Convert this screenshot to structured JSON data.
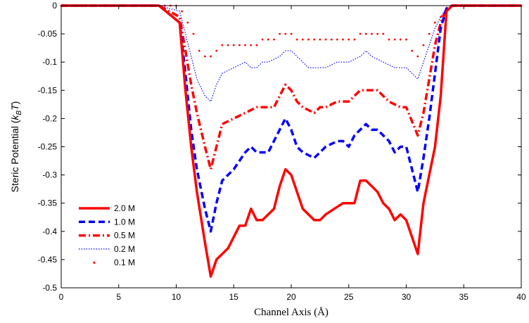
{
  "chart_data": {
    "type": "line",
    "xlabel": "Channel Axis (Å)",
    "ylabel_main": "Steric Potential (",
    "ylabel_k": "k",
    "ylabel_sub": "B",
    "ylabel_t": "T",
    "ylabel_close": ")",
    "xlim": [
      0,
      40
    ],
    "ylim": [
      -0.5,
      0
    ],
    "xticks": [
      0,
      5,
      10,
      15,
      20,
      25,
      30,
      35,
      40
    ],
    "yticks": [
      0,
      -0.05,
      -0.1,
      -0.15,
      -0.2,
      -0.25,
      -0.3,
      -0.35,
      -0.4,
      -0.45,
      -0.5
    ],
    "ytick_labels": [
      "0",
      "-0.05",
      "-0.1",
      "-0.15",
      "-0.2",
      "-0.25",
      "-0.3",
      "-0.35",
      "-0.4",
      "-0.45",
      "-0.5"
    ],
    "grid": false,
    "legend_position": "bottom-left",
    "series": [
      {
        "name": "2.0 M",
        "color": "#ff0000",
        "style": "solid",
        "x": [
          0,
          8.5,
          10.3,
          10.8,
          11.3,
          11.8,
          12.5,
          13.0,
          13.5,
          14.5,
          15.5,
          16.0,
          16.5,
          17.0,
          17.5,
          18.5,
          19.0,
          19.5,
          20.0,
          20.5,
          21.0,
          22.0,
          22.5,
          23.0,
          24.5,
          25.5,
          26.0,
          26.5,
          27.0,
          27.5,
          28.0,
          28.5,
          29.0,
          29.5,
          30.0,
          31.0,
          31.5,
          32.5,
          33.0,
          33.5,
          34.0,
          40
        ],
        "y": [
          0,
          0,
          -0.03,
          -0.15,
          -0.25,
          -0.33,
          -0.42,
          -0.48,
          -0.45,
          -0.43,
          -0.39,
          -0.39,
          -0.36,
          -0.38,
          -0.38,
          -0.36,
          -0.32,
          -0.29,
          -0.3,
          -0.33,
          -0.36,
          -0.38,
          -0.38,
          -0.37,
          -0.35,
          -0.35,
          -0.31,
          -0.31,
          -0.32,
          -0.33,
          -0.35,
          -0.36,
          -0.38,
          -0.37,
          -0.38,
          -0.44,
          -0.35,
          -0.25,
          -0.16,
          -0.01,
          0,
          0
        ]
      },
      {
        "name": "1.0 M",
        "color": "#0000ff",
        "style": "dashed",
        "x": [
          0,
          8.5,
          10.3,
          10.8,
          11.3,
          11.8,
          12.5,
          13.0,
          13.5,
          14.0,
          15.0,
          16.0,
          16.5,
          17.0,
          17.5,
          18.0,
          19.0,
          19.5,
          20.0,
          20.5,
          21.0,
          22.0,
          22.5,
          23.0,
          24.0,
          24.5,
          25.0,
          25.5,
          26.0,
          26.5,
          27.0,
          27.5,
          28.5,
          29.0,
          29.5,
          30.0,
          31.0,
          31.5,
          32.0,
          32.5,
          33.0,
          33.5,
          34.0,
          40
        ],
        "y": [
          0,
          0,
          -0.03,
          -0.12,
          -0.22,
          -0.29,
          -0.36,
          -0.4,
          -0.35,
          -0.31,
          -0.29,
          -0.26,
          -0.25,
          -0.26,
          -0.26,
          -0.26,
          -0.22,
          -0.2,
          -0.22,
          -0.25,
          -0.26,
          -0.27,
          -0.26,
          -0.25,
          -0.24,
          -0.24,
          -0.25,
          -0.23,
          -0.22,
          -0.21,
          -0.22,
          -0.22,
          -0.24,
          -0.26,
          -0.25,
          -0.25,
          -0.33,
          -0.27,
          -0.2,
          -0.12,
          -0.04,
          -0.005,
          0,
          0
        ]
      },
      {
        "name": "0.5 M",
        "color": "#ff0000",
        "style": "dashdot",
        "x": [
          0,
          8.5,
          10.3,
          10.8,
          11.3,
          11.8,
          12.5,
          13.0,
          13.5,
          14.0,
          15.0,
          16.0,
          17.0,
          18.0,
          18.5,
          19.0,
          19.5,
          20.0,
          20.5,
          21.0,
          22.0,
          22.5,
          23.0,
          24.0,
          25.0,
          25.5,
          26.0,
          27.0,
          27.5,
          28.5,
          29.5,
          30.0,
          31.0,
          31.5,
          32.0,
          32.5,
          33.0,
          33.5,
          34.0,
          40
        ],
        "y": [
          0,
          0,
          -0.02,
          -0.08,
          -0.14,
          -0.19,
          -0.25,
          -0.29,
          -0.25,
          -0.21,
          -0.2,
          -0.19,
          -0.18,
          -0.18,
          -0.18,
          -0.16,
          -0.14,
          -0.15,
          -0.17,
          -0.18,
          -0.19,
          -0.18,
          -0.18,
          -0.17,
          -0.17,
          -0.16,
          -0.15,
          -0.15,
          -0.15,
          -0.17,
          -0.18,
          -0.18,
          -0.23,
          -0.19,
          -0.13,
          -0.07,
          -0.03,
          -0.005,
          0,
          0
        ]
      },
      {
        "name": "0.2 M",
        "color": "#0000ff",
        "style": "dotted",
        "x": [
          0,
          8.5,
          10.3,
          10.8,
          11.3,
          11.8,
          12.5,
          13.0,
          13.5,
          14.0,
          15.0,
          16.0,
          16.5,
          17.0,
          17.5,
          18.0,
          19.0,
          19.5,
          20.0,
          20.5,
          21.0,
          21.5,
          22.0,
          23.0,
          24.0,
          25.0,
          26.0,
          26.5,
          27.0,
          28.0,
          29.0,
          30.0,
          31.0,
          31.5,
          32.0,
          32.5,
          33.0,
          33.5,
          34.0,
          40
        ],
        "y": [
          0,
          0,
          -0.01,
          -0.05,
          -0.09,
          -0.13,
          -0.16,
          -0.17,
          -0.14,
          -0.12,
          -0.11,
          -0.1,
          -0.11,
          -0.11,
          -0.1,
          -0.1,
          -0.09,
          -0.08,
          -0.08,
          -0.09,
          -0.1,
          -0.11,
          -0.11,
          -0.11,
          -0.1,
          -0.1,
          -0.09,
          -0.08,
          -0.09,
          -0.1,
          -0.11,
          -0.11,
          -0.13,
          -0.1,
          -0.07,
          -0.04,
          -0.02,
          -0.005,
          0,
          0
        ]
      },
      {
        "name": "0.1 M",
        "color": "#ff0000",
        "style": "dots",
        "x": [
          0,
          0.5,
          1,
          1.5,
          2,
          2.5,
          3,
          3.5,
          4,
          4.5,
          5,
          5.5,
          6,
          6.5,
          7,
          7.5,
          8,
          8.5,
          9,
          9.5,
          10,
          10.5,
          11,
          11.5,
          12,
          12.5,
          13,
          13.5,
          14,
          14.5,
          15,
          15.5,
          16,
          16.5,
          17,
          17.5,
          18,
          18.5,
          19,
          19.5,
          20,
          20.5,
          21,
          21.5,
          22,
          22.5,
          23,
          23.5,
          24,
          24.5,
          25,
          25.5,
          26,
          26.5,
          27,
          27.5,
          28,
          28.5,
          29,
          29.5,
          30,
          30.5,
          31,
          31.5,
          32,
          32.5,
          33,
          33.5,
          34,
          34.5,
          35,
          35.5,
          36,
          36.5,
          37,
          37.5,
          38,
          38.5,
          39,
          39.5,
          40
        ],
        "y": [
          0,
          0,
          0,
          0,
          0,
          0,
          0,
          0,
          0,
          0,
          0,
          0,
          0,
          0,
          0,
          0,
          0,
          0,
          0,
          0,
          0,
          -0.01,
          -0.03,
          -0.05,
          -0.08,
          -0.09,
          -0.09,
          -0.08,
          -0.07,
          -0.07,
          -0.07,
          -0.07,
          -0.07,
          -0.07,
          -0.07,
          -0.06,
          -0.06,
          -0.06,
          -0.05,
          -0.05,
          -0.05,
          -0.06,
          -0.06,
          -0.06,
          -0.06,
          -0.06,
          -0.06,
          -0.06,
          -0.06,
          -0.06,
          -0.06,
          -0.06,
          -0.05,
          -0.05,
          -0.05,
          -0.05,
          -0.05,
          -0.06,
          -0.06,
          -0.06,
          -0.06,
          -0.08,
          -0.09,
          -0.07,
          -0.05,
          -0.03,
          -0.02,
          -0.01,
          0,
          0,
          0,
          0,
          0,
          0,
          0,
          0,
          0,
          0,
          0,
          0,
          0
        ]
      }
    ]
  }
}
